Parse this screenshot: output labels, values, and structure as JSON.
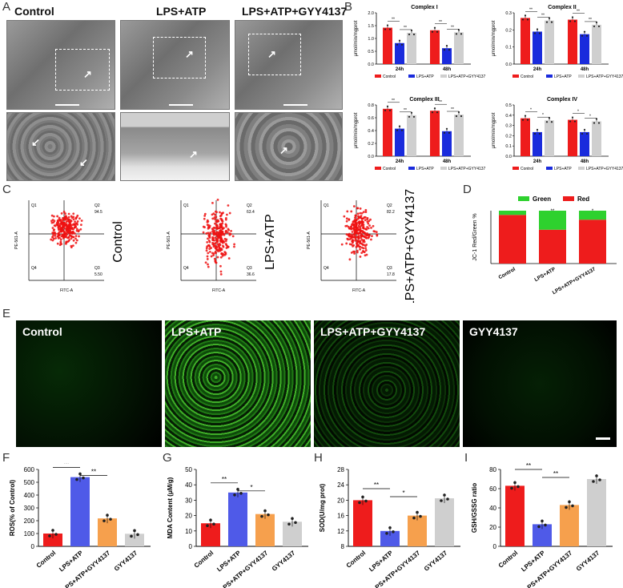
{
  "panel_labels": {
    "A": "A",
    "B": "B",
    "C": "C",
    "D": "D",
    "E": "E",
    "F": "F",
    "G": "G",
    "H": "H",
    "I": "I"
  },
  "em": {
    "titles": [
      "Control",
      "LPS+ATP",
      "LPS+ATP+GYY4137"
    ]
  },
  "flow": {
    "titles": [
      "Control",
      "LPS+ATP",
      "LPS+ATP+GYY4137"
    ],
    "quad_labels": [
      "Q1",
      "Q2",
      "Q3",
      "Q4"
    ],
    "q2_values": [
      "94.5",
      "63.4",
      "82.2"
    ],
    "q3_values": [
      "5.50",
      "36.6",
      "17.8"
    ],
    "xlabel": "FITC-A",
    "ylabel": "PE-561-A"
  },
  "fluor": {
    "titles": [
      "Control",
      "LPS+ATP",
      "LPS+ATP+GYY4137",
      "GYY4137"
    ]
  },
  "colors": {
    "control": "#ee1c1c",
    "lps": "#1a2bdc",
    "gyy": "#cfcfcf",
    "orange": "#f6a04d",
    "blue2": "#4f5ae8",
    "green": "#2ed12e"
  },
  "chart_data": [
    {
      "id": "complex1",
      "type": "bar",
      "title": "Complex I",
      "ylabel": "μmol/min/mgprot",
      "categories": [
        "24h",
        "48h"
      ],
      "series": [
        {
          "name": "Control",
          "values": [
            1.42,
            1.32
          ]
        },
        {
          "name": "LPS+ATP",
          "values": [
            0.82,
            0.62
          ]
        },
        {
          "name": "LPS+ATP+GYY4137",
          "values": [
            1.22,
            1.24
          ]
        }
      ],
      "ylim": [
        0,
        2.0
      ],
      "yticks": [
        "0.0",
        "0.5",
        "1.0",
        "1.5",
        "2.0"
      ],
      "sig": [
        "**",
        "**",
        "**",
        "**"
      ]
    },
    {
      "id": "complex2",
      "type": "bar",
      "title": "Complex II",
      "ylabel": "μmol/min/mgprot",
      "categories": [
        "24h",
        "48h"
      ],
      "series": [
        {
          "name": "Control",
          "values": [
            0.27,
            0.26
          ]
        },
        {
          "name": "LPS+ATP",
          "values": [
            0.19,
            0.175
          ]
        },
        {
          "name": "LPS+ATP+GYY4137",
          "values": [
            0.255,
            0.23
          ]
        }
      ],
      "ylim": [
        0,
        0.3
      ],
      "yticks": [
        "0.0",
        "0.1",
        "0.2",
        "0.3"
      ],
      "sig": [
        "**",
        "**",
        "**",
        "**"
      ]
    },
    {
      "id": "complex3",
      "type": "bar",
      "title": "Complex III",
      "ylabel": "μmol/min/mgprot",
      "categories": [
        "24h",
        "48h"
      ],
      "series": [
        {
          "name": "Control",
          "values": [
            0.74,
            0.71
          ]
        },
        {
          "name": "LPS+ATP",
          "values": [
            0.43,
            0.39
          ]
        },
        {
          "name": "LPS+ATP+GYY4137",
          "values": [
            0.64,
            0.65
          ]
        }
      ],
      "ylim": [
        0,
        0.8
      ],
      "yticks": [
        "0.0",
        "0.2",
        "0.4",
        "0.6",
        "0.8"
      ],
      "sig": [
        "**",
        "**",
        "**",
        "**"
      ]
    },
    {
      "id": "complex4",
      "type": "bar",
      "title": "Complex IV",
      "ylabel": "μmol/min/mgprot",
      "categories": [
        "24h",
        "48h"
      ],
      "series": [
        {
          "name": "Control",
          "values": [
            0.37,
            0.355
          ]
        },
        {
          "name": "LPS+ATP",
          "values": [
            0.235,
            0.235
          ]
        },
        {
          "name": "LPS+ATP+GYY4137",
          "values": [
            0.35,
            0.34
          ]
        }
      ],
      "ylim": [
        0,
        0.5
      ],
      "yticks": [
        "0.0",
        "0.1",
        "0.2",
        "0.3",
        "0.4",
        "0.5"
      ],
      "sig": [
        "*",
        "*",
        "*",
        "*"
      ]
    },
    {
      "id": "jc1",
      "type": "bar",
      "stacked": true,
      "ylabel": "JC-1 Red/Green %",
      "categories": [
        "Control",
        "LPS+ATP",
        "LPS+ATP+GYY4137"
      ],
      "series": [
        {
          "name": "Red",
          "values": [
            92,
            64,
            83
          ]
        },
        {
          "name": "Green",
          "values": [
            8,
            36,
            17
          ]
        }
      ],
      "ylim": [
        0,
        100
      ],
      "sig": [
        "**",
        "*"
      ]
    },
    {
      "id": "ros",
      "type": "bar",
      "ylabel": "ROS(% of Control)",
      "categories": [
        "Control",
        "LPS+ATP",
        "LPS+ATP+GYY4137",
        "GYY4137"
      ],
      "values": [
        100,
        540,
        218,
        98
      ],
      "ylim": [
        0,
        600
      ],
      "yticks": [
        "0",
        "100",
        "200",
        "300",
        "400",
        "500",
        "600"
      ],
      "sig": [
        "**",
        "**"
      ]
    },
    {
      "id": "mda",
      "type": "bar",
      "ylabel": "MDA Content (μM/g)",
      "categories": [
        "Control",
        "LPS+ATP",
        "LPS+ATP+GYY4137",
        "GYY4137"
      ],
      "values": [
        15,
        35,
        21,
        16
      ],
      "ylim": [
        0,
        50
      ],
      "yticks": [
        "0",
        "10",
        "20",
        "30",
        "40",
        "50"
      ],
      "sig": [
        "**",
        "*"
      ]
    },
    {
      "id": "sod",
      "type": "bar",
      "ylabel": "SOD(U/mg prot)",
      "categories": [
        "Control",
        "LPS+ATP",
        "LPS+ATP+GYY4137",
        "GYY4137"
      ],
      "values": [
        20,
        12,
        16,
        20.5
      ],
      "ylim": [
        8,
        28
      ],
      "yticks": [
        "8",
        "12",
        "16",
        "20",
        "24",
        "28"
      ],
      "sig": [
        "**",
        "*"
      ]
    },
    {
      "id": "gsh",
      "type": "bar",
      "ylabel": "GSH/GSSG ratio",
      "categories": [
        "Control",
        "LPS+ATP",
        "LPS+ATP+GYY4137",
        "GYY4137"
      ],
      "values": [
        63,
        23,
        43,
        70
      ],
      "ylim": [
        0,
        80
      ],
      "yticks": [
        "0",
        "20",
        "40",
        "60",
        "80"
      ],
      "sig": [
        "**",
        "**"
      ]
    }
  ]
}
